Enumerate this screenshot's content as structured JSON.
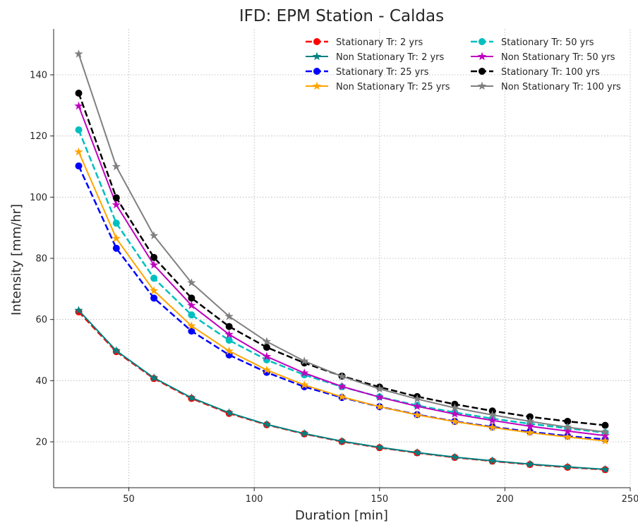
{
  "chart_data": {
    "type": "line",
    "title": "IFD: EPM Station - Caldas",
    "xlabel": "Duration [min]",
    "ylabel": "Intensity [mm/hr]",
    "xlim": [
      20,
      250
    ],
    "ylim": [
      5,
      155
    ],
    "xticks": [
      "50",
      "100",
      "150",
      "200",
      "250"
    ],
    "yticks": [
      "20",
      "40",
      "60",
      "80",
      "100",
      "120",
      "140"
    ],
    "grid": true,
    "legend_position": "top-right",
    "x": [
      30,
      45,
      60,
      75,
      90,
      105,
      120,
      135,
      150,
      165,
      180,
      195,
      210,
      225,
      240
    ],
    "series": [
      {
        "name": "Stationary Tr: 2 yrs",
        "color": "#ff0000",
        "marker": "circle",
        "dashed": true,
        "values": [
          62.5,
          49.5,
          40.7,
          34.2,
          29.3,
          25.6,
          22.6,
          20.1,
          18.1,
          16.4,
          14.9,
          13.7,
          12.6,
          11.7,
          10.9
        ]
      },
      {
        "name": "Non Stationary Tr: 2 yrs",
        "color": "#008080",
        "marker": "star",
        "dashed": false,
        "values": [
          63.0,
          49.8,
          40.9,
          34.4,
          29.5,
          25.7,
          22.7,
          20.2,
          18.2,
          16.5,
          15.0,
          13.8,
          12.7,
          11.8,
          11.0
        ]
      },
      {
        "name": "Stationary Tr: 25 yrs",
        "color": "#0000ff",
        "marker": "circle",
        "dashed": true,
        "values": [
          110.2,
          83.3,
          67.0,
          56.2,
          48.4,
          42.7,
          38.0,
          34.5,
          31.5,
          28.9,
          26.7,
          24.9,
          23.3,
          21.9,
          20.8
        ]
      },
      {
        "name": "Non Stationary Tr: 25 yrs",
        "color": "#ffa500",
        "marker": "star",
        "dashed": false,
        "values": [
          114.8,
          86.5,
          69.4,
          57.9,
          49.7,
          43.5,
          38.6,
          34.7,
          31.5,
          28.8,
          26.6,
          24.7,
          23.0,
          21.6,
          20.3
        ]
      },
      {
        "name": "Stationary Tr: 50 yrs",
        "color": "#00bfbf",
        "marker": "circle",
        "dashed": true,
        "values": [
          122.0,
          91.5,
          73.5,
          61.5,
          53.2,
          46.8,
          41.9,
          38.0,
          34.7,
          31.9,
          29.6,
          27.6,
          25.9,
          24.4,
          23.0
        ]
      },
      {
        "name": "Non Stationary Tr: 50 yrs",
        "color": "#bf00bf",
        "marker": "star",
        "dashed": false,
        "values": [
          129.8,
          97.5,
          77.8,
          64.6,
          55.1,
          47.9,
          42.5,
          38.1,
          34.6,
          31.6,
          29.1,
          27.0,
          25.1,
          23.5,
          22.0
        ]
      },
      {
        "name": "Stationary Tr: 100 yrs",
        "color": "#000000",
        "marker": "circle",
        "dashed": true,
        "values": [
          134.0,
          99.8,
          80.3,
          67.0,
          57.7,
          50.9,
          45.8,
          41.5,
          37.9,
          34.8,
          32.3,
          30.1,
          28.2,
          26.7,
          25.4
        ]
      },
      {
        "name": "Non Stationary Tr: 100 yrs",
        "color": "#808080",
        "marker": "star",
        "dashed": false,
        "values": [
          146.8,
          110.0,
          87.4,
          72.0,
          61.0,
          52.8,
          46.4,
          41.4,
          37.3,
          34.0,
          31.1,
          28.8,
          26.7,
          24.8,
          23.2
        ]
      }
    ]
  }
}
